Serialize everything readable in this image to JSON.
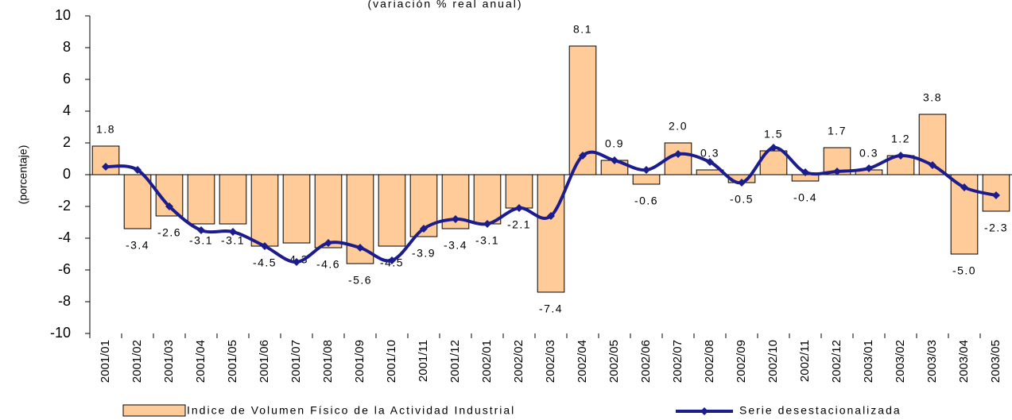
{
  "chart_data": {
    "type": "bar-line",
    "subtitle": "(variación % real anual)",
    "y_label": "(porcentaje)",
    "categories": [
      "2001/01",
      "2001/02",
      "2001/03",
      "2001/04",
      "2001/05",
      "2001/06",
      "2001/07",
      "2001/08",
      "2001/09",
      "2001/10",
      "2001/11",
      "2001/12",
      "2002/01",
      "2002/02",
      "2002/03",
      "2002/04",
      "2002/05",
      "2002/06",
      "2002/07",
      "2002/08",
      "2002/09",
      "2002/10",
      "2002/11",
      "2002/12",
      "2003/01",
      "2003/02",
      "2003/03",
      "2003/04",
      "2003/05"
    ],
    "series": [
      {
        "name": "Indice de Volumen Físico de la Actividad Industrial",
        "type": "bar",
        "color": "#ffcc99",
        "values": [
          1.8,
          -3.4,
          -2.6,
          -3.1,
          -3.1,
          -4.5,
          -4.3,
          -4.6,
          -5.6,
          -4.5,
          -3.9,
          -3.4,
          -3.1,
          -2.1,
          -7.4,
          8.1,
          0.9,
          -0.6,
          2.0,
          0.3,
          -0.5,
          1.5,
          -0.4,
          1.7,
          0.3,
          1.2,
          3.8,
          -5.0,
          -2.3
        ],
        "value_labels": [
          "1.8",
          "-3.4",
          "-2.6",
          "-3.1",
          "-3.1",
          "-4.5",
          "-4.3",
          "-4.6",
          "-5.6",
          "-4.5",
          "-3.9",
          "-3.4",
          "-3.1",
          "-2.1",
          "-7.4",
          "8.1",
          "0.9",
          "-0.6",
          "2.0",
          "0.3",
          "-0.5",
          "1.5",
          "-0.4",
          "1.7",
          "0.3",
          "1.2",
          "3.8",
          "-5.0",
          "-2.3"
        ]
      },
      {
        "name": "Serie desestacionalizada",
        "type": "line",
        "color": "#1c1c8c",
        "values": [
          0.5,
          0.3,
          -2.0,
          -3.5,
          -3.6,
          -4.5,
          -5.5,
          -4.3,
          -4.6,
          -5.4,
          -3.4,
          -2.8,
          -3.1,
          -2.1,
          -2.6,
          1.2,
          0.9,
          0.3,
          1.3,
          0.8,
          -0.5,
          1.7,
          0.15,
          0.2,
          0.4,
          1.2,
          0.6,
          -0.8,
          -1.3
        ]
      }
    ],
    "ylim": [
      -10,
      10
    ],
    "yticks": [
      -10,
      -8,
      -6,
      -4,
      -2,
      0,
      2,
      4,
      6,
      8,
      10
    ],
    "legend": "bottom"
  }
}
